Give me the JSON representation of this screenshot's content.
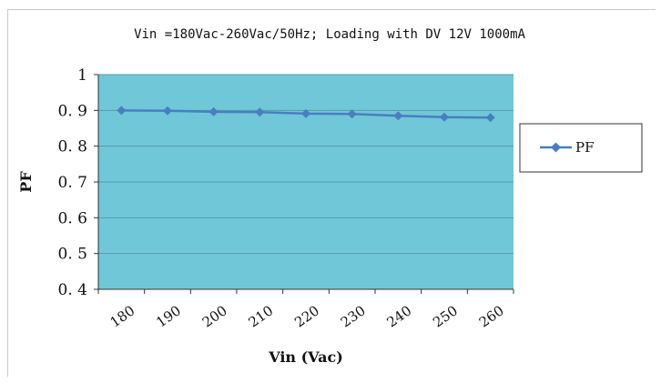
{
  "chart_data": {
    "type": "line",
    "title": "Vin =180Vac-260Vac/50Hz; Loading with DV 12V 1000mA",
    "xlabel": "Vin (Vac)",
    "ylabel": "PF",
    "categories": [
      "180",
      "190",
      "200",
      "210",
      "220",
      "230",
      "240",
      "250",
      "260"
    ],
    "series": [
      {
        "name": "PF",
        "values": [
          0.9,
          0.899,
          0.896,
          0.895,
          0.891,
          0.89,
          0.885,
          0.881,
          0.88
        ]
      }
    ],
    "ylim": [
      0.4,
      1
    ],
    "yticks": [
      "0. 4",
      "0. 5",
      "0. 6",
      "0. 7",
      "0. 8",
      "0. 9",
      "1"
    ],
    "grid": true,
    "legend_position": "right",
    "colors": {
      "plot_bg": "#6fc7d8",
      "line": "#4a7ec0",
      "grid": "#5a9aa8"
    }
  }
}
